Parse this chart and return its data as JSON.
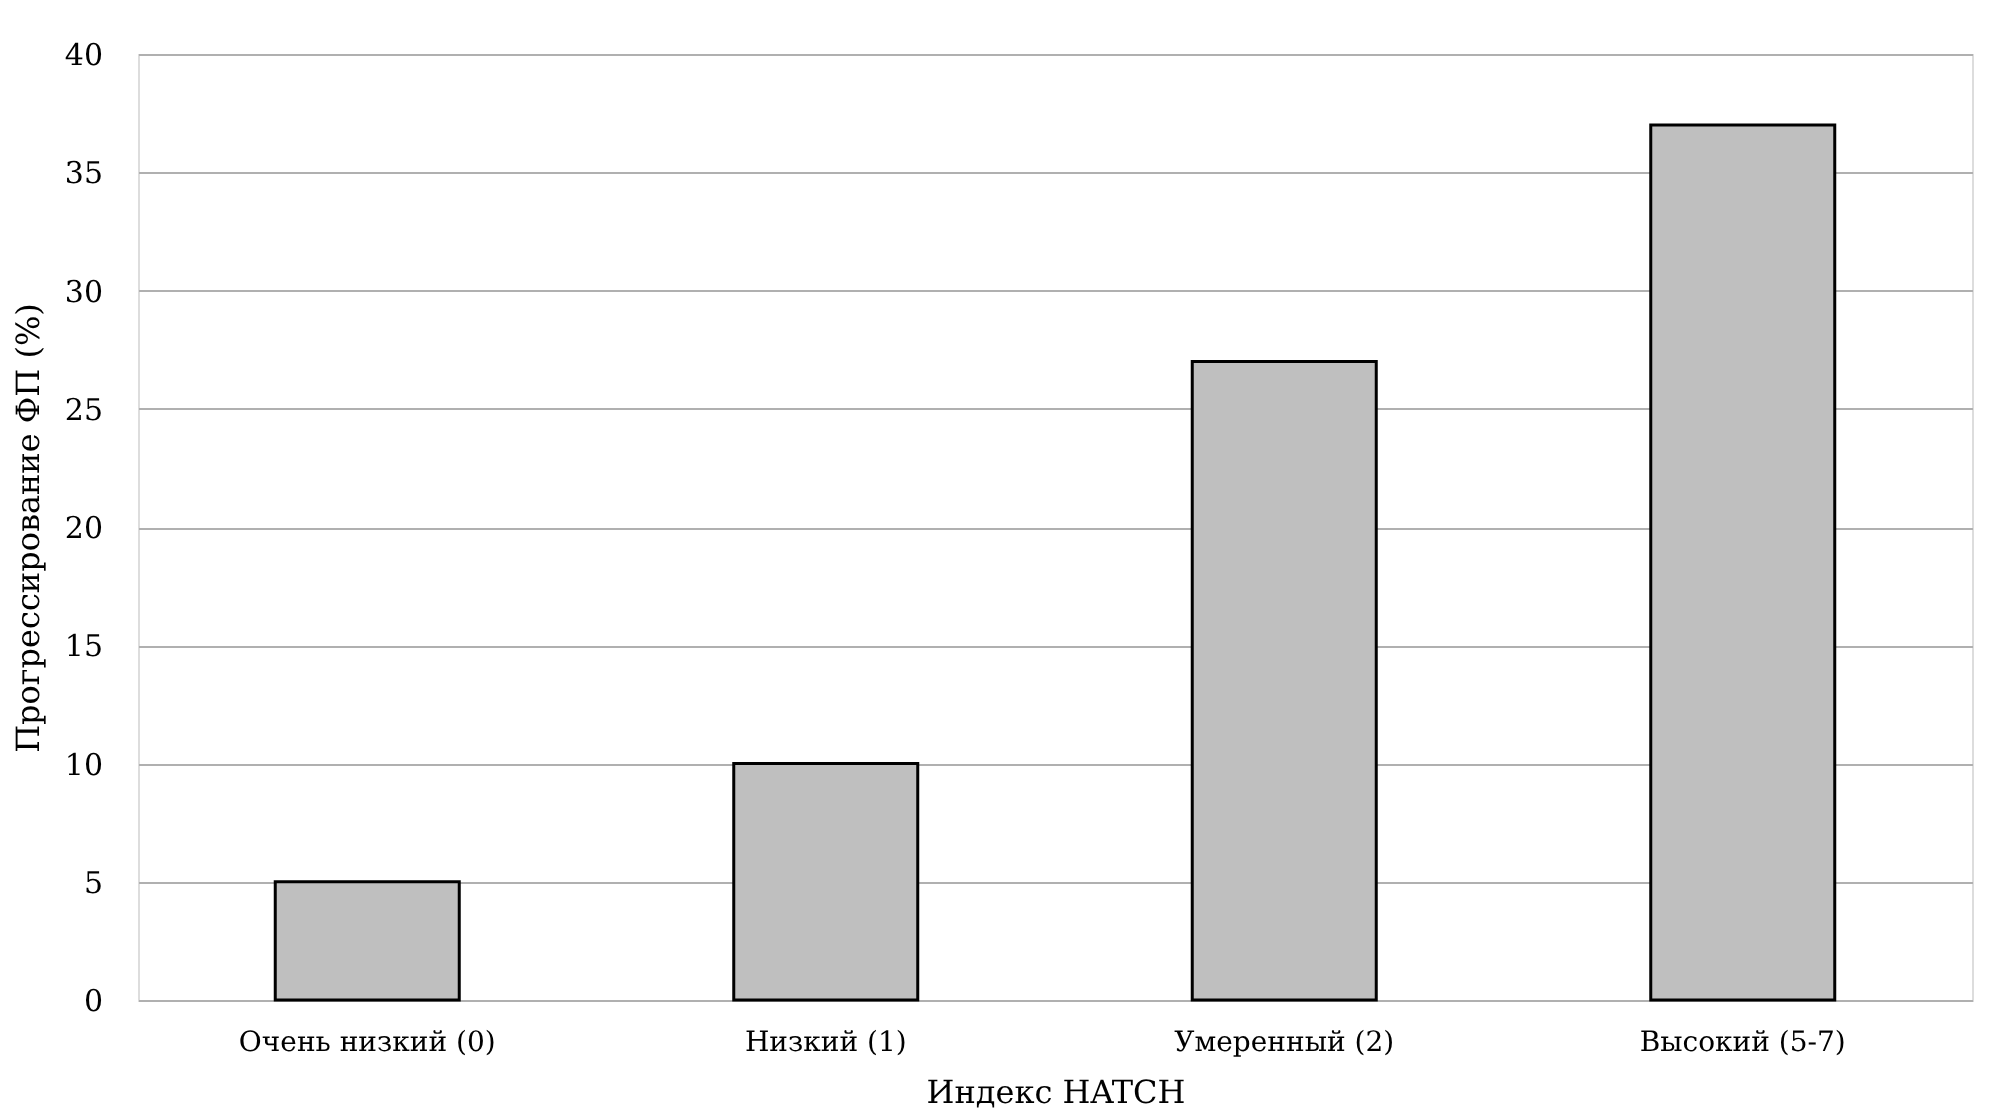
{
  "chart_data": {
    "type": "bar",
    "xlabel": "Индекс HATCH",
    "ylabel": "Прогрессирование ФП (%)",
    "categories": [
      "Очень низкий (0)",
      "Низкий (1)",
      "Умеренный (2)",
      "Высокий (5-7)"
    ],
    "values": [
      5,
      10,
      27,
      37
    ],
    "color": "#bfbfbf",
    "ylim": [
      0,
      40
    ],
    "yticks": [
      0,
      5,
      10,
      15,
      20,
      25,
      30,
      35,
      40
    ],
    "grid": "y"
  }
}
